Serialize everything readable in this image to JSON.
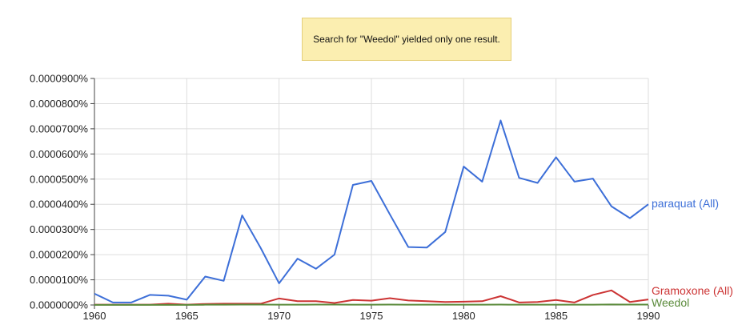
{
  "notice": {
    "text": "Search for \"Weedol\" yielded only one result."
  },
  "chart_data": {
    "type": "line",
    "title": "",
    "xlabel": "",
    "ylabel": "",
    "xlim": [
      1960,
      1990
    ],
    "ylim": [
      0,
      9e-07
    ],
    "grid": true,
    "legend": "right, labels at line ends",
    "x_ticks": [
      1960,
      1965,
      1970,
      1975,
      1980,
      1985,
      1990
    ],
    "y_ticks": [
      "0.0000000%",
      "0.0000100%",
      "0.0000200%",
      "0.0000300%",
      "0.0000400%",
      "0.0000500%",
      "0.0000600%",
      "0.0000700%",
      "0.0000800%",
      "0.0000900%"
    ],
    "x": [
      1960,
      1961,
      1962,
      1963,
      1964,
      1965,
      1966,
      1967,
      1968,
      1969,
      1970,
      1971,
      1972,
      1973,
      1974,
      1975,
      1976,
      1977,
      1978,
      1979,
      1980,
      1981,
      1982,
      1983,
      1984,
      1985,
      1986,
      1987,
      1988,
      1989,
      1990
    ],
    "series": [
      {
        "name": "paraquat (All)",
        "color": "#3d6fd8",
        "values": [
          4.5e-08,
          1e-08,
          1e-08,
          4e-08,
          3.7e-08,
          2.1e-08,
          1.13e-07,
          9.6e-08,
          3.56e-07,
          2.27e-07,
          8.6e-08,
          1.84e-07,
          1.44e-07,
          2e-07,
          4.77e-07,
          4.93e-07,
          3.6e-07,
          2.3e-07,
          2.28e-07,
          2.9e-07,
          5.5e-07,
          4.9e-07,
          7.33e-07,
          5.05e-07,
          4.85e-07,
          5.87e-07,
          4.9e-07,
          5.02e-07,
          3.92e-07,
          3.45e-07,
          4e-07
        ]
      },
      {
        "name": "Gramoxone (All)",
        "color": "#cc3333",
        "values": [
          1e-09,
          1e-09,
          1e-09,
          1e-09,
          5e-09,
          1e-09,
          4e-09,
          5e-09,
          5e-09,
          5e-09,
          2.6e-08,
          1.5e-08,
          1.5e-08,
          8e-09,
          2e-08,
          1.7e-08,
          2.7e-08,
          1.8e-08,
          1.5e-08,
          1.2e-08,
          1.3e-08,
          1.5e-08,
          3.5e-08,
          1e-08,
          1.2e-08,
          2e-08,
          1e-08,
          4e-08,
          5.8e-08,
          1.2e-08,
          2.2e-08
        ]
      },
      {
        "name": "Weedol",
        "color": "#5a8a3a",
        "values": [
          5e-10,
          5e-10,
          5e-10,
          5e-10,
          5e-10,
          5e-10,
          1e-09,
          1e-09,
          1.5e-09,
          1.5e-09,
          1e-09,
          1e-09,
          1.5e-09,
          1.5e-09,
          1e-09,
          1e-09,
          1.5e-09,
          1e-09,
          1e-09,
          1e-09,
          1e-09,
          1e-09,
          1.5e-09,
          1e-09,
          1e-09,
          1e-09,
          1e-09,
          1e-09,
          2e-09,
          1.5e-09,
          1.5e-09
        ]
      }
    ]
  }
}
